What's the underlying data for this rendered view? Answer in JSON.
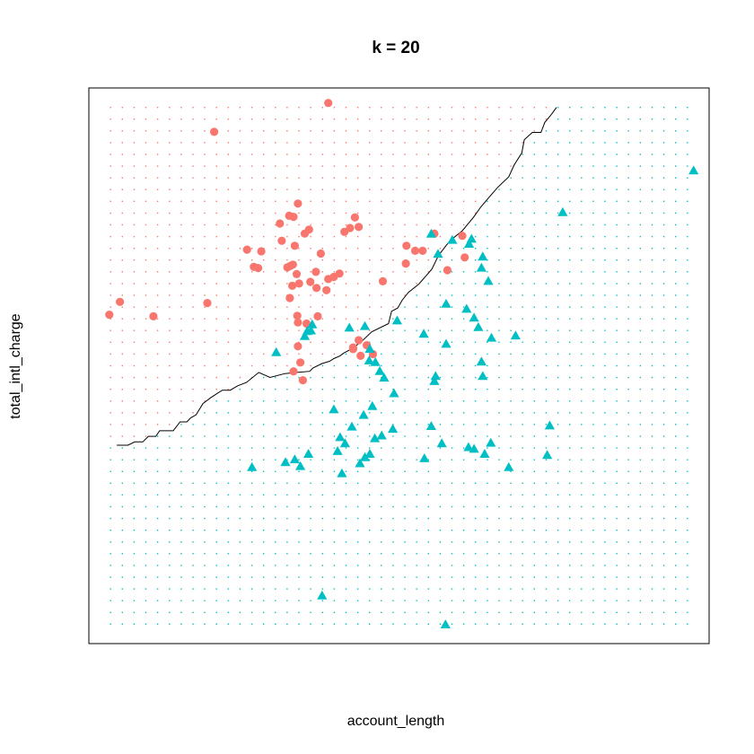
{
  "chart_data": {
    "type": "scatter",
    "title": "k = 20",
    "xlabel": "account_length",
    "ylabel": "total_intl_charge",
    "xlim": [
      0,
      100
    ],
    "ylim": [
      0,
      100
    ],
    "axes_shown": false,
    "grid": {
      "x_count": 50,
      "y_count": 45,
      "x_range": [
        3.5,
        96.5
      ],
      "y_range": [
        3.5,
        96.5
      ]
    },
    "boundary": [
      [
        4.5,
        35.7
      ],
      [
        6.3,
        35.7
      ],
      [
        7.4,
        36.3
      ],
      [
        8.7,
        36.3
      ],
      [
        9.6,
        37.3
      ],
      [
        10.8,
        37.3
      ],
      [
        11.4,
        38.3
      ],
      [
        13.6,
        38.3
      ],
      [
        14.7,
        39.9
      ],
      [
        15.8,
        39.9
      ],
      [
        16.4,
        40.6
      ],
      [
        17.3,
        41.2
      ],
      [
        18.4,
        43.2
      ],
      [
        19.7,
        44.3
      ],
      [
        21.5,
        45.6
      ],
      [
        22.8,
        45.6
      ],
      [
        24.0,
        46.4
      ],
      [
        25.4,
        47.0
      ],
      [
        27.4,
        48.8
      ],
      [
        29.2,
        47.9
      ],
      [
        31.6,
        48.6
      ],
      [
        33.6,
        48.8
      ],
      [
        35.6,
        49.0
      ],
      [
        36.1,
        49.6
      ],
      [
        37.6,
        50.4
      ],
      [
        38.8,
        50.8
      ],
      [
        39.5,
        51.3
      ],
      [
        40.5,
        51.8
      ],
      [
        41.1,
        52.3
      ],
      [
        42.3,
        53.0
      ],
      [
        44.0,
        54.4
      ],
      [
        45.6,
        56.1
      ],
      [
        48.3,
        57.6
      ],
      [
        48.8,
        59.8
      ],
      [
        49.8,
        60.4
      ],
      [
        50.5,
        61.8
      ],
      [
        51.5,
        63.2
      ],
      [
        53.2,
        64.7
      ],
      [
        54.3,
        66.1
      ],
      [
        55.3,
        67.4
      ],
      [
        56.4,
        69.9
      ],
      [
        58.2,
        72.5
      ],
      [
        60.2,
        74.3
      ],
      [
        62.0,
        76.7
      ],
      [
        63.2,
        78.6
      ],
      [
        64.5,
        80.3
      ],
      [
        65.9,
        82.1
      ],
      [
        67.7,
        84.0
      ],
      [
        68.6,
        86.2
      ],
      [
        69.8,
        88.3
      ],
      [
        70.2,
        90.7
      ],
      [
        71.5,
        92.0
      ],
      [
        72.9,
        92.0
      ],
      [
        73.5,
        93.8
      ],
      [
        74.4,
        95.0
      ],
      [
        75.4,
        96.5
      ]
    ],
    "series": [
      {
        "name": "class 1",
        "color": "#F8766D",
        "marker": "circle",
        "points": [
          [
            38.6,
            97.3
          ],
          [
            20.2,
            92.1
          ],
          [
            19.1,
            61.3
          ],
          [
            5.0,
            61.5
          ],
          [
            3.3,
            59.2
          ],
          [
            10.4,
            58.9
          ],
          [
            25.5,
            70.9
          ],
          [
            27.8,
            70.6
          ],
          [
            31.1,
            72.5
          ],
          [
            32.3,
            77.0
          ],
          [
            33.2,
            71.6
          ],
          [
            34.8,
            73.8
          ],
          [
            30.8,
            75.6
          ],
          [
            33.0,
            76.8
          ],
          [
            33.7,
            79.2
          ],
          [
            35.5,
            74.5
          ],
          [
            37.4,
            70.2
          ],
          [
            41.2,
            74.1
          ],
          [
            42.9,
            76.7
          ],
          [
            43.5,
            75.0
          ],
          [
            42.1,
            74.8
          ],
          [
            26.6,
            67.8
          ],
          [
            27.3,
            67.6
          ],
          [
            32.0,
            67.7
          ],
          [
            32.9,
            68.2
          ],
          [
            32.5,
            68.0
          ],
          [
            36.6,
            66.9
          ],
          [
            38.6,
            65.6
          ],
          [
            39.5,
            66.0
          ],
          [
            33.9,
            64.8
          ],
          [
            35.7,
            65.1
          ],
          [
            36.7,
            64.0
          ],
          [
            32.8,
            64.4
          ],
          [
            32.4,
            62.2
          ],
          [
            33.5,
            66.5
          ],
          [
            38.3,
            63.6
          ],
          [
            33.6,
            59.0
          ],
          [
            36.9,
            58.9
          ],
          [
            33.7,
            57.8
          ],
          [
            35.1,
            57.6
          ],
          [
            47.4,
            65.2
          ],
          [
            51.2,
            71.6
          ],
          [
            52.6,
            70.7
          ],
          [
            55.7,
            73.8
          ],
          [
            60.2,
            73.4
          ],
          [
            57.8,
            67.2
          ],
          [
            51.1,
            68.4
          ],
          [
            60.6,
            69.5
          ],
          [
            53.8,
            70.7
          ],
          [
            40.4,
            66.6
          ],
          [
            42.6,
            53.3
          ],
          [
            43.5,
            54.6
          ],
          [
            42.6,
            53.0
          ],
          [
            33.7,
            53.5
          ],
          [
            34.1,
            50.6
          ],
          [
            34.5,
            47.4
          ],
          [
            33.0,
            49.0
          ],
          [
            43.8,
            51.8
          ],
          [
            45.8,
            52.1
          ],
          [
            44.8,
            53.7
          ]
        ]
      },
      {
        "name": "class 2",
        "color": "#00BFC4",
        "marker": "triangle",
        "points": [
          [
            97.5,
            85.1
          ],
          [
            76.4,
            77.6
          ],
          [
            55.2,
            73.7
          ],
          [
            58.6,
            72.6
          ],
          [
            61.3,
            71.9
          ],
          [
            61.7,
            72.8
          ],
          [
            56.3,
            70.1
          ],
          [
            63.5,
            69.6
          ],
          [
            63.3,
            67.6
          ],
          [
            64.4,
            65.2
          ],
          [
            57.6,
            61.1
          ],
          [
            60.9,
            60.2
          ],
          [
            62.1,
            58.6
          ],
          [
            62.8,
            56.9
          ],
          [
            49.7,
            58.1
          ],
          [
            44.5,
            57.1
          ],
          [
            36.0,
            57.4
          ],
          [
            35.8,
            56.3
          ],
          [
            34.8,
            55.3
          ],
          [
            42.0,
            56.8
          ],
          [
            54.0,
            55.7
          ],
          [
            57.6,
            53.9
          ],
          [
            64.9,
            55.0
          ],
          [
            68.8,
            55.4
          ],
          [
            45.3,
            53.0
          ],
          [
            30.2,
            52.4
          ],
          [
            45.2,
            50.9
          ],
          [
            46.2,
            50.6
          ],
          [
            46.9,
            49.0
          ],
          [
            47.6,
            47.8
          ],
          [
            55.9,
            48.1
          ],
          [
            55.7,
            47.2
          ],
          [
            63.5,
            48.1
          ],
          [
            63.3,
            50.7
          ],
          [
            49.2,
            45.0
          ],
          [
            39.5,
            42.1
          ],
          [
            45.7,
            42.7
          ],
          [
            44.3,
            41.1
          ],
          [
            42.4,
            39.0
          ],
          [
            49.0,
            38.6
          ],
          [
            47.2,
            37.4
          ],
          [
            46.1,
            36.9
          ],
          [
            45.3,
            34.1
          ],
          [
            44.5,
            33.5
          ],
          [
            55.2,
            39.1
          ],
          [
            56.9,
            36.0
          ],
          [
            61.2,
            35.3
          ],
          [
            62.1,
            35.0
          ],
          [
            64.8,
            36.1
          ],
          [
            63.8,
            34.1
          ],
          [
            74.3,
            39.2
          ],
          [
            73.9,
            33.9
          ],
          [
            67.7,
            31.7
          ],
          [
            54.1,
            33.3
          ],
          [
            40.5,
            37.1
          ],
          [
            41.3,
            36.0
          ],
          [
            40.1,
            34.6
          ],
          [
            43.7,
            32.4
          ],
          [
            35.4,
            34.1
          ],
          [
            33.2,
            33.1
          ],
          [
            31.7,
            32.6
          ],
          [
            34.1,
            31.9
          ],
          [
            40.8,
            30.6
          ],
          [
            26.3,
            31.7
          ],
          [
            37.6,
            8.6
          ],
          [
            57.5,
            3.4
          ],
          [
            35.2,
            56.2
          ]
        ]
      }
    ]
  }
}
